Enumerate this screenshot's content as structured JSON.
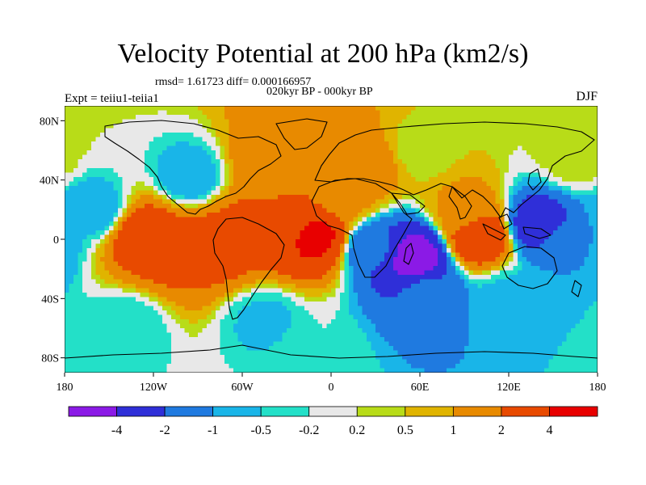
{
  "header": {
    "title": "Velocity Potential at 200 hPa (km2/s)",
    "stats": "rmsd= 1.61723 diff= 0.000166957",
    "subtitle": "020kyr BP - 000kyr BP",
    "left_label": "Expt = teiiu1-teiia1",
    "right_label": "DJF"
  },
  "chart_data": {
    "type": "heatmap",
    "projection": "cylindrical-equidistant",
    "xlim": [
      -180,
      180
    ],
    "ylim": [
      -90,
      90
    ],
    "x_ticks": [
      {
        "value": -180,
        "label": "180"
      },
      {
        "value": -120,
        "label": "120W"
      },
      {
        "value": -60,
        "label": "60W"
      },
      {
        "value": 0,
        "label": "0"
      },
      {
        "value": 60,
        "label": "60E"
      },
      {
        "value": 120,
        "label": "120E"
      },
      {
        "value": 180,
        "label": "180"
      }
    ],
    "y_ticks": [
      {
        "value": 80,
        "label": "80N"
      },
      {
        "value": 40,
        "label": "40N"
      },
      {
        "value": 0,
        "label": "0"
      },
      {
        "value": -40,
        "label": "40S"
      },
      {
        "value": -80,
        "label": "80S"
      }
    ],
    "contour_levels": [
      -4,
      -2,
      -1,
      -0.5,
      -0.2,
      0.2,
      0.5,
      1,
      2,
      4
    ],
    "level_labels": [
      "-4",
      "-2",
      "-1",
      "-0.5",
      "-0.2",
      "0.2",
      "0.5",
      "1",
      "2",
      "4"
    ],
    "colors": [
      "#8b1ae6",
      "#2f2fd8",
      "#1f7ae0",
      "#19b5e8",
      "#23e0c8",
      "#e8e8e8",
      "#b8dc18",
      "#e0b400",
      "#e88a00",
      "#e84a00",
      "#e80000"
    ],
    "field_centers": [
      {
        "lon": -125,
        "lat": 2,
        "value": 3.0
      },
      {
        "lon": -100,
        "lat": -6,
        "value": 2.5
      },
      {
        "lon": -72,
        "lat": -2,
        "value": 2.6
      },
      {
        "lon": -55,
        "lat": 8,
        "value": 2.2
      },
      {
        "lon": -30,
        "lat": 12,
        "value": 2.0
      },
      {
        "lon": -12,
        "lat": 2,
        "value": 4.5
      },
      {
        "lon": -42,
        "lat": 50,
        "value": 1.7
      },
      {
        "lon": -15,
        "lat": 72,
        "value": 1.3
      },
      {
        "lon": 25,
        "lat": 50,
        "value": 1.6
      },
      {
        "lon": 10,
        "lat": 30,
        "value": 1.2
      },
      {
        "lon": -160,
        "lat": 20,
        "value": -0.8
      },
      {
        "lon": -95,
        "lat": 42,
        "value": -0.8
      },
      {
        "lon": -140,
        "lat": -60,
        "value": -0.5
      },
      {
        "lon": -45,
        "lat": -55,
        "value": -0.6
      },
      {
        "lon": 55,
        "lat": -12,
        "value": -5.0
      },
      {
        "lon": 30,
        "lat": -6,
        "value": -1.8
      },
      {
        "lon": 65,
        "lat": -38,
        "value": -1.6
      },
      {
        "lon": 100,
        "lat": 2,
        "value": 3.3
      },
      {
        "lon": 90,
        "lat": 20,
        "value": 1.2
      },
      {
        "lon": 140,
        "lat": 10,
        "value": -2.8
      },
      {
        "lon": 160,
        "lat": -5,
        "value": -1.0
      },
      {
        "lon": 120,
        "lat": -40,
        "value": -0.6
      },
      {
        "lon": 165,
        "lat": 55,
        "value": 0.4
      },
      {
        "lon": 60,
        "lat": 60,
        "value": 0.3
      },
      {
        "lon": -10,
        "lat": -75,
        "value": -0.2
      }
    ]
  }
}
